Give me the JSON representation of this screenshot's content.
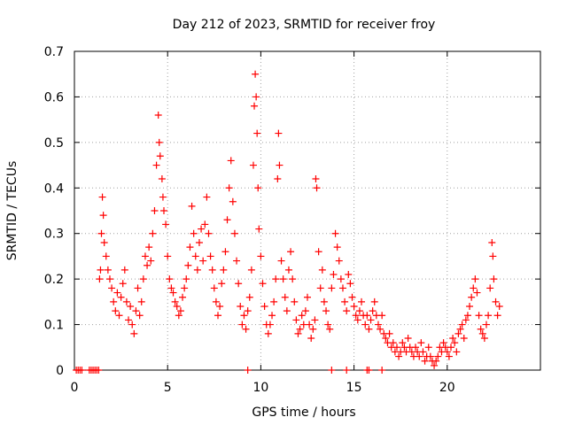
{
  "chart_data": {
    "type": "scatter",
    "title": "Day 212 of 2023, SRMTID for receiver froy",
    "xlabel": "GPS time / hours",
    "ylabel": "SRMTID / TECUs",
    "xlim": [
      0,
      25
    ],
    "ylim": [
      0,
      0.7
    ],
    "xticks": [
      0,
      5,
      10,
      15,
      20
    ],
    "xtick_labels": [
      "0",
      "5",
      "10",
      "15",
      "20"
    ],
    "yticks": [
      0,
      0.1,
      0.2,
      0.3,
      0.4,
      0.5,
      0.6,
      0.7
    ],
    "ytick_labels": [
      "0",
      "0.1",
      "0.2",
      "0.3",
      "0.4",
      "0.5",
      "0.6",
      "0.7"
    ],
    "grid": true,
    "marker": "+",
    "series": [
      {
        "name": "SRMTID",
        "color": "#ff0000",
        "points": [
          [
            0.1,
            0.0
          ],
          [
            0.2,
            0.0
          ],
          [
            0.3,
            0.0
          ],
          [
            0.4,
            0.0
          ],
          [
            0.8,
            0.0
          ],
          [
            0.9,
            0.0
          ],
          [
            1.0,
            0.0
          ],
          [
            1.1,
            0.0
          ],
          [
            1.2,
            0.0
          ],
          [
            1.3,
            0.0
          ],
          [
            1.35,
            0.2
          ],
          [
            1.4,
            0.22
          ],
          [
            1.45,
            0.3
          ],
          [
            1.5,
            0.38
          ],
          [
            1.55,
            0.34
          ],
          [
            1.6,
            0.28
          ],
          [
            1.7,
            0.25
          ],
          [
            1.8,
            0.22
          ],
          [
            1.9,
            0.2
          ],
          [
            2.0,
            0.18
          ],
          [
            2.1,
            0.15
          ],
          [
            2.2,
            0.13
          ],
          [
            2.3,
            0.17
          ],
          [
            2.4,
            0.12
          ],
          [
            2.5,
            0.16
          ],
          [
            2.6,
            0.19
          ],
          [
            2.7,
            0.22
          ],
          [
            2.8,
            0.15
          ],
          [
            2.9,
            0.11
          ],
          [
            3.0,
            0.14
          ],
          [
            3.1,
            0.1
          ],
          [
            3.2,
            0.08
          ],
          [
            3.3,
            0.13
          ],
          [
            3.4,
            0.18
          ],
          [
            3.5,
            0.12
          ],
          [
            3.6,
            0.15
          ],
          [
            3.7,
            0.2
          ],
          [
            3.8,
            0.25
          ],
          [
            3.9,
            0.23
          ],
          [
            4.0,
            0.27
          ],
          [
            4.1,
            0.24
          ],
          [
            4.2,
            0.3
          ],
          [
            4.3,
            0.35
          ],
          [
            4.4,
            0.45
          ],
          [
            4.5,
            0.56
          ],
          [
            4.55,
            0.5
          ],
          [
            4.6,
            0.47
          ],
          [
            4.7,
            0.42
          ],
          [
            4.75,
            0.38
          ],
          [
            4.8,
            0.35
          ],
          [
            4.9,
            0.32
          ],
          [
            5.0,
            0.25
          ],
          [
            5.1,
            0.2
          ],
          [
            5.2,
            0.18
          ],
          [
            5.3,
            0.17
          ],
          [
            5.4,
            0.15
          ],
          [
            5.5,
            0.14
          ],
          [
            5.6,
            0.12
          ],
          [
            5.7,
            0.13
          ],
          [
            5.8,
            0.16
          ],
          [
            5.9,
            0.18
          ],
          [
            6.0,
            0.2
          ],
          [
            6.1,
            0.23
          ],
          [
            6.2,
            0.27
          ],
          [
            6.3,
            0.36
          ],
          [
            6.4,
            0.3
          ],
          [
            6.5,
            0.25
          ],
          [
            6.6,
            0.22
          ],
          [
            6.7,
            0.28
          ],
          [
            6.8,
            0.31
          ],
          [
            6.9,
            0.24
          ],
          [
            7.0,
            0.32
          ],
          [
            7.1,
            0.38
          ],
          [
            7.2,
            0.3
          ],
          [
            7.3,
            0.25
          ],
          [
            7.4,
            0.22
          ],
          [
            7.5,
            0.18
          ],
          [
            7.6,
            0.15
          ],
          [
            7.7,
            0.12
          ],
          [
            7.8,
            0.14
          ],
          [
            7.9,
            0.19
          ],
          [
            8.0,
            0.22
          ],
          [
            8.1,
            0.26
          ],
          [
            8.2,
            0.33
          ],
          [
            8.3,
            0.4
          ],
          [
            8.4,
            0.46
          ],
          [
            8.5,
            0.37
          ],
          [
            8.6,
            0.3
          ],
          [
            8.7,
            0.24
          ],
          [
            8.8,
            0.19
          ],
          [
            8.9,
            0.14
          ],
          [
            9.0,
            0.1
          ],
          [
            9.1,
            0.12
          ],
          [
            9.2,
            0.09
          ],
          [
            9.3,
            0.13
          ],
          [
            9.4,
            0.16
          ],
          [
            9.5,
            0.22
          ],
          [
            9.6,
            0.45
          ],
          [
            9.65,
            0.58
          ],
          [
            9.7,
            0.65
          ],
          [
            9.75,
            0.6
          ],
          [
            9.8,
            0.52
          ],
          [
            9.85,
            0.4
          ],
          [
            9.9,
            0.31
          ],
          [
            10.0,
            0.25
          ],
          [
            10.1,
            0.19
          ],
          [
            10.2,
            0.14
          ],
          [
            10.3,
            0.1
          ],
          [
            10.4,
            0.08
          ],
          [
            10.5,
            0.1
          ],
          [
            10.6,
            0.12
          ],
          [
            10.7,
            0.15
          ],
          [
            10.8,
            0.2
          ],
          [
            10.9,
            0.42
          ],
          [
            10.95,
            0.52
          ],
          [
            11.0,
            0.45
          ],
          [
            11.1,
            0.24
          ],
          [
            11.2,
            0.2
          ],
          [
            11.3,
            0.16
          ],
          [
            11.4,
            0.13
          ],
          [
            11.5,
            0.22
          ],
          [
            11.6,
            0.26
          ],
          [
            11.7,
            0.2
          ],
          [
            11.8,
            0.15
          ],
          [
            11.9,
            0.11
          ],
          [
            12.0,
            0.08
          ],
          [
            12.1,
            0.09
          ],
          [
            12.2,
            0.12
          ],
          [
            12.3,
            0.1
          ],
          [
            12.4,
            0.13
          ],
          [
            12.5,
            0.16
          ],
          [
            12.6,
            0.1
          ],
          [
            12.7,
            0.07
          ],
          [
            12.8,
            0.09
          ],
          [
            12.9,
            0.11
          ],
          [
            12.95,
            0.42
          ],
          [
            13.0,
            0.4
          ],
          [
            13.1,
            0.26
          ],
          [
            13.2,
            0.18
          ],
          [
            13.3,
            0.22
          ],
          [
            13.4,
            0.15
          ],
          [
            13.5,
            0.13
          ],
          [
            13.6,
            0.1
          ],
          [
            13.7,
            0.09
          ],
          [
            13.8,
            0.18
          ],
          [
            13.9,
            0.21
          ],
          [
            14.0,
            0.3
          ],
          [
            14.1,
            0.27
          ],
          [
            14.2,
            0.24
          ],
          [
            14.3,
            0.2
          ],
          [
            14.4,
            0.18
          ],
          [
            14.5,
            0.15
          ],
          [
            14.6,
            0.13
          ],
          [
            14.7,
            0.21
          ],
          [
            14.8,
            0.19
          ],
          [
            14.9,
            0.16
          ],
          [
            15.0,
            0.14
          ],
          [
            15.1,
            0.12
          ],
          [
            15.2,
            0.11
          ],
          [
            15.3,
            0.13
          ],
          [
            15.4,
            0.15
          ],
          [
            15.5,
            0.12
          ],
          [
            15.6,
            0.1
          ],
          [
            15.7,
            0.12
          ],
          [
            15.8,
            0.09
          ],
          [
            15.9,
            0.11
          ],
          [
            16.0,
            0.13
          ],
          [
            16.1,
            0.15
          ],
          [
            16.2,
            0.12
          ],
          [
            16.3,
            0.1
          ],
          [
            16.4,
            0.09
          ],
          [
            16.5,
            0.12
          ],
          [
            16.6,
            0.08
          ],
          [
            16.7,
            0.07
          ],
          [
            16.8,
            0.06
          ],
          [
            16.9,
            0.08
          ],
          [
            17.0,
            0.05
          ],
          [
            17.1,
            0.06
          ],
          [
            17.2,
            0.04
          ],
          [
            17.3,
            0.05
          ],
          [
            17.4,
            0.03
          ],
          [
            17.5,
            0.04
          ],
          [
            17.6,
            0.06
          ],
          [
            17.7,
            0.05
          ],
          [
            17.8,
            0.04
          ],
          [
            17.9,
            0.07
          ],
          [
            18.0,
            0.05
          ],
          [
            18.1,
            0.04
          ],
          [
            18.2,
            0.03
          ],
          [
            18.3,
            0.05
          ],
          [
            18.4,
            0.04
          ],
          [
            18.5,
            0.03
          ],
          [
            18.6,
            0.06
          ],
          [
            18.7,
            0.04
          ],
          [
            18.8,
            0.02
          ],
          [
            18.9,
            0.03
          ],
          [
            19.0,
            0.05
          ],
          [
            19.1,
            0.03
          ],
          [
            19.2,
            0.02
          ],
          [
            19.3,
            0.01
          ],
          [
            19.4,
            0.02
          ],
          [
            19.5,
            0.03
          ],
          [
            19.6,
            0.05
          ],
          [
            19.7,
            0.04
          ],
          [
            19.8,
            0.06
          ],
          [
            19.9,
            0.05
          ],
          [
            20.0,
            0.04
          ],
          [
            20.1,
            0.03
          ],
          [
            20.2,
            0.05
          ],
          [
            20.3,
            0.07
          ],
          [
            20.4,
            0.06
          ],
          [
            20.5,
            0.04
          ],
          [
            20.6,
            0.08
          ],
          [
            20.7,
            0.09
          ],
          [
            20.8,
            0.1
          ],
          [
            20.9,
            0.07
          ],
          [
            21.0,
            0.11
          ],
          [
            21.1,
            0.12
          ],
          [
            21.2,
            0.14
          ],
          [
            21.3,
            0.16
          ],
          [
            21.4,
            0.18
          ],
          [
            21.5,
            0.2
          ],
          [
            21.6,
            0.17
          ],
          [
            21.7,
            0.12
          ],
          [
            21.8,
            0.09
          ],
          [
            21.9,
            0.08
          ],
          [
            22.0,
            0.07
          ],
          [
            22.1,
            0.1
          ],
          [
            22.2,
            0.12
          ],
          [
            22.3,
            0.18
          ],
          [
            22.4,
            0.28
          ],
          [
            22.45,
            0.25
          ],
          [
            22.5,
            0.2
          ],
          [
            22.6,
            0.15
          ],
          [
            22.7,
            0.12
          ],
          [
            22.8,
            0.14
          ],
          [
            9.3,
            0.0
          ],
          [
            13.8,
            0.0
          ],
          [
            14.6,
            0.0
          ],
          [
            15.7,
            0.0
          ],
          [
            15.8,
            0.0
          ],
          [
            16.5,
            0.0
          ]
        ]
      }
    ]
  }
}
